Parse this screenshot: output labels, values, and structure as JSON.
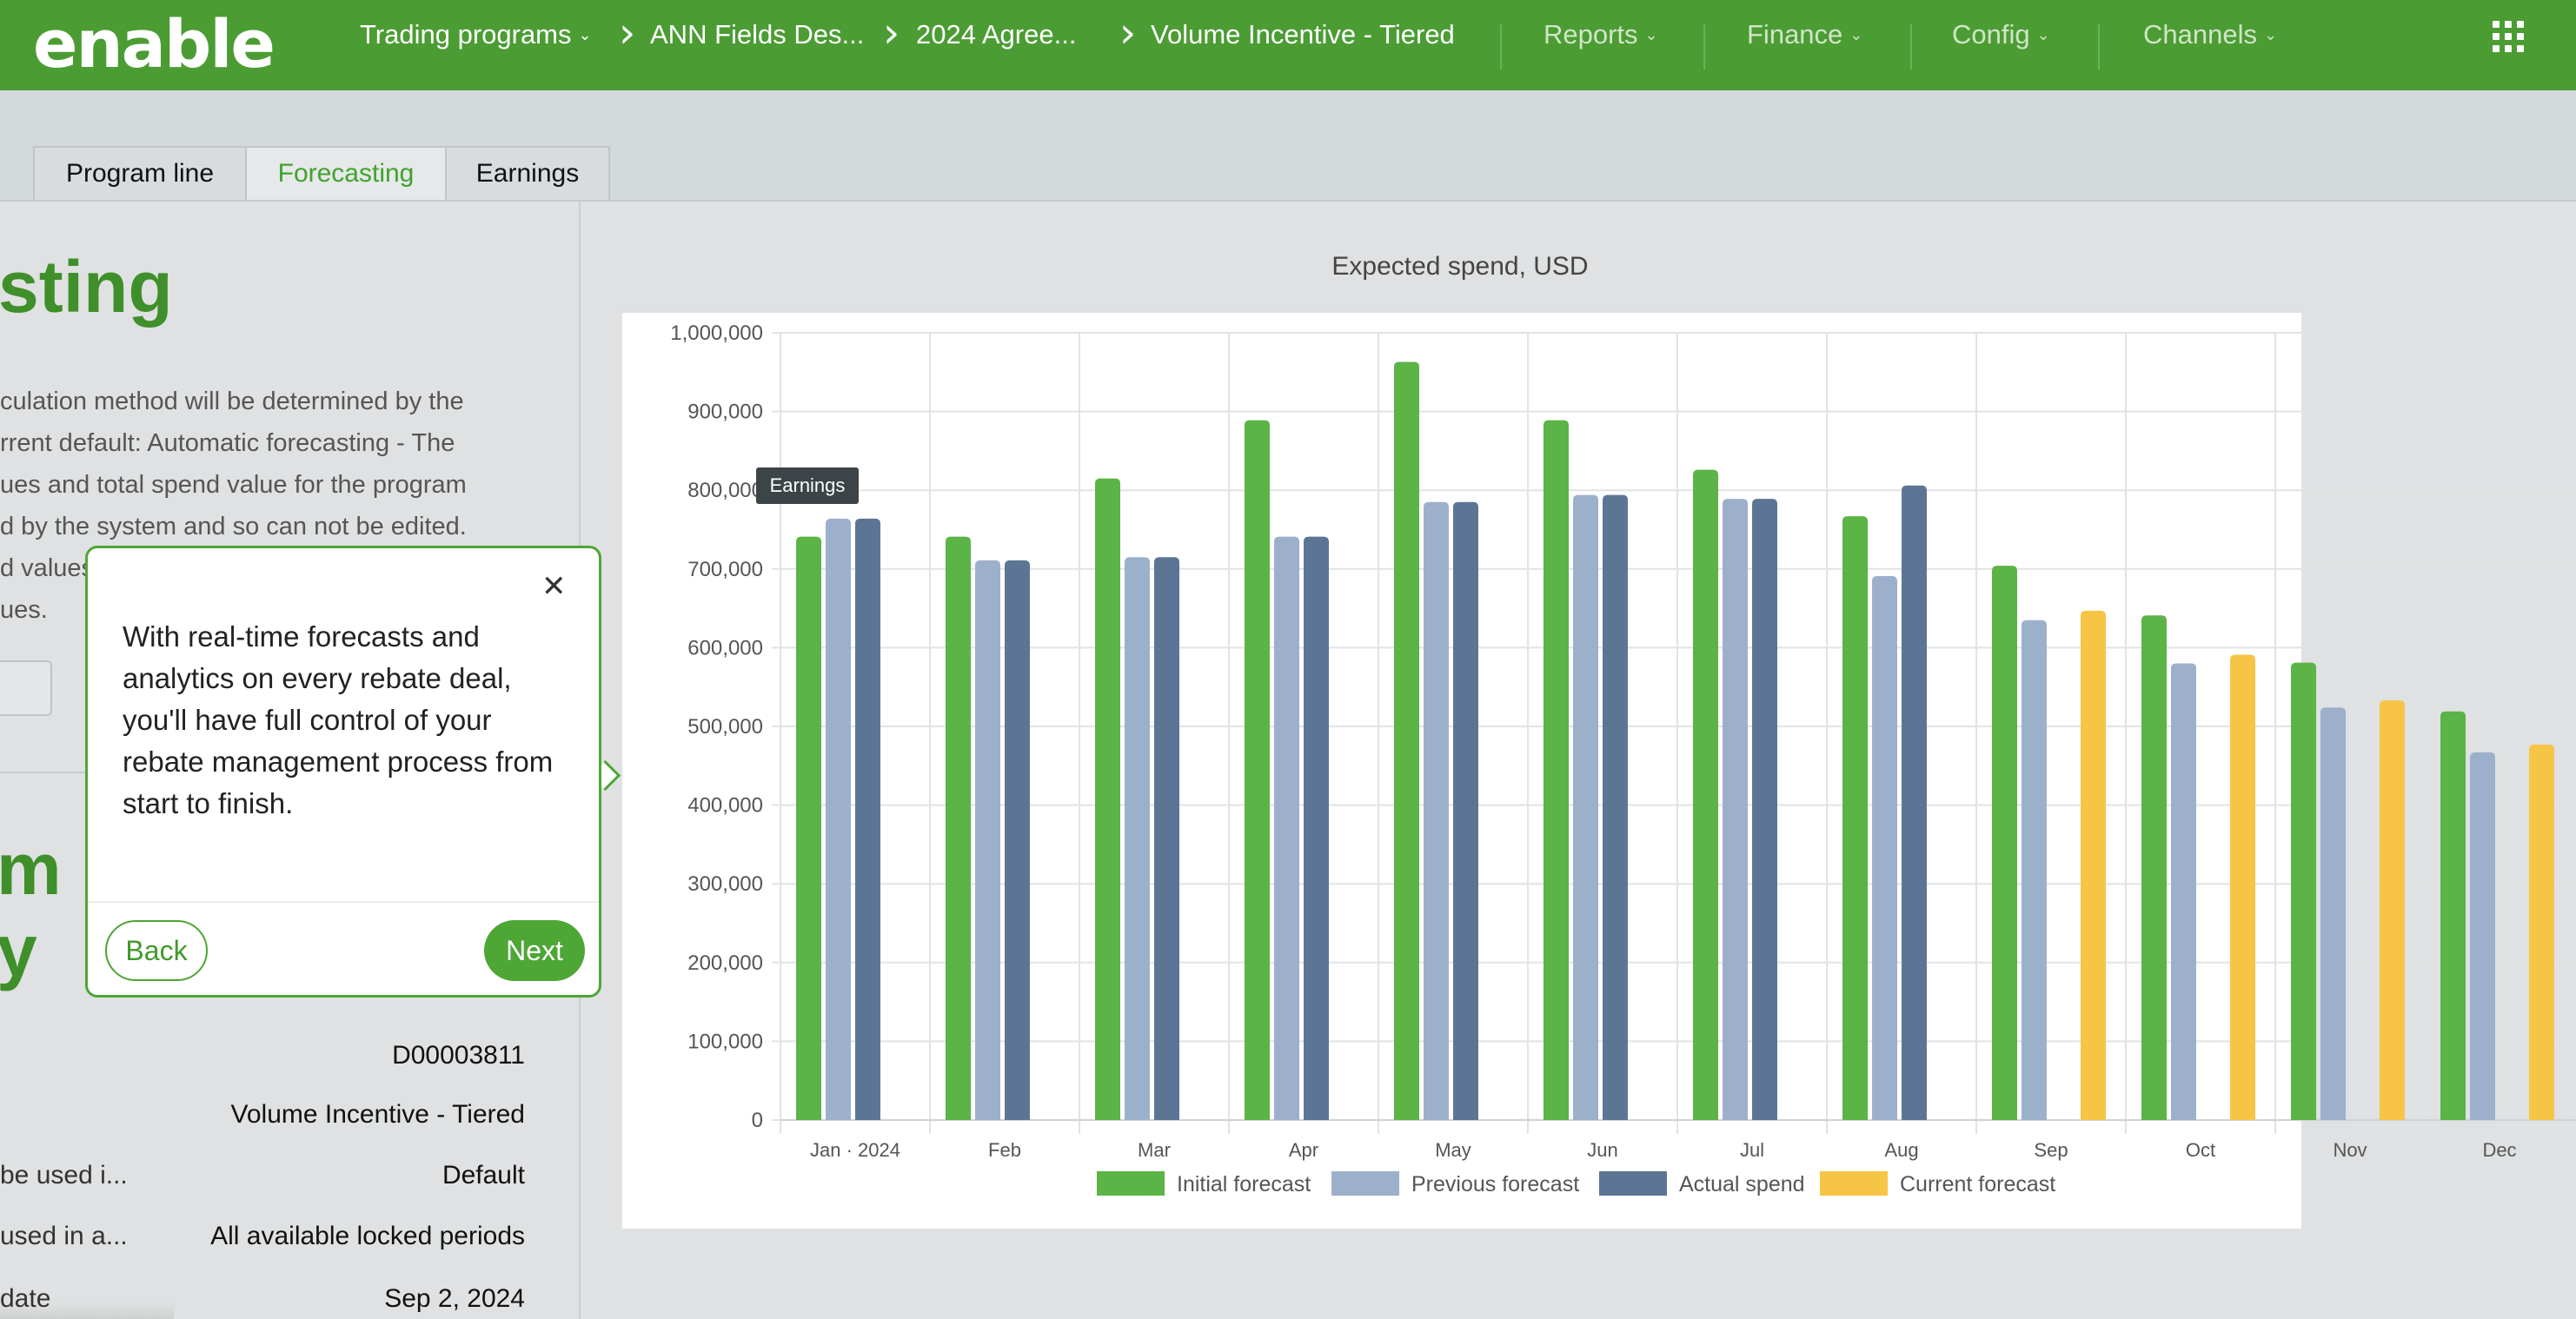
{
  "app": {
    "logo_text": "enable"
  },
  "breadcrumbs": [
    "Trading programs",
    "ANN Fields Des...",
    "2024 Agree...",
    "Volume Incentive - Tiered"
  ],
  "nav_menus": [
    "Reports",
    "Finance",
    "Config",
    "Channels"
  ],
  "tabs": [
    {
      "label": "Program line",
      "active": false
    },
    {
      "label": "Forecasting",
      "active": true
    },
    {
      "label": "Earnings",
      "active": false
    }
  ],
  "left": {
    "title": "sting",
    "description_lines": [
      "culation method will be determined by the",
      "rrent default: Automatic forecasting - The",
      "ues and total spend value for the program",
      "d by the system and so can not be edited.",
      "d values",
      "ues."
    ],
    "section_title_lines": [
      "m",
      "y"
    ],
    "details": [
      {
        "label": "",
        "value": "D00003811"
      },
      {
        "label": "",
        "value": "Volume Incentive - Tiered"
      },
      {
        "label": "be used i...",
        "value": "Default"
      },
      {
        "label": "used in a...",
        "value": "All available locked periods"
      },
      {
        "label": "date",
        "value": "Sep 2, 2024"
      }
    ]
  },
  "popover": {
    "text": "With real-time forecasts and analytics on every rebate deal, you'll have full control of your rebate management process from start to finish.",
    "back_label": "Back",
    "next_label": "Next",
    "close_icon": "close-icon"
  },
  "tooltip": {
    "label": "Earnings"
  },
  "chart_data": {
    "type": "bar",
    "title": "Expected spend, USD",
    "xlabel": "",
    "ylabel": "",
    "ylim": [
      0,
      1000000
    ],
    "yticks": [
      0,
      100000,
      200000,
      300000,
      400000,
      500000,
      600000,
      700000,
      800000,
      900000,
      1000000
    ],
    "ytick_labels": [
      "0",
      "100,000",
      "200,000",
      "300,000",
      "400,000",
      "500,000",
      "600,000",
      "700,000",
      "800,000",
      "900,000",
      "1,000,000"
    ],
    "categories": [
      "Jan · 2024",
      "Feb",
      "Mar",
      "Apr",
      "May",
      "Jun",
      "Jul",
      "Aug",
      "Sep",
      "Oct",
      "Nov",
      "Dec"
    ],
    "grid": true,
    "legend_position": "bottom",
    "series": [
      {
        "name": "Initial forecast",
        "color": "#5cb346",
        "values": [
          741000,
          741000,
          815000,
          889000,
          963000,
          889000,
          826000,
          767000,
          704000,
          641000,
          581000,
          519000
        ]
      },
      {
        "name": "Previous forecast",
        "color": "#9db0cb",
        "values": [
          764000,
          711000,
          715000,
          741000,
          785000,
          794000,
          789000,
          691000,
          635000,
          580000,
          524000,
          467000
        ]
      },
      {
        "name": "Actual spend",
        "color": "#5d7595",
        "values": [
          764000,
          711000,
          715000,
          741000,
          785000,
          794000,
          789000,
          806000,
          null,
          null,
          null,
          null
        ]
      },
      {
        "name": "Current forecast",
        "color": "#f7c545",
        "values": [
          null,
          null,
          null,
          null,
          null,
          null,
          null,
          null,
          647000,
          591000,
          533000,
          477000
        ]
      }
    ]
  }
}
